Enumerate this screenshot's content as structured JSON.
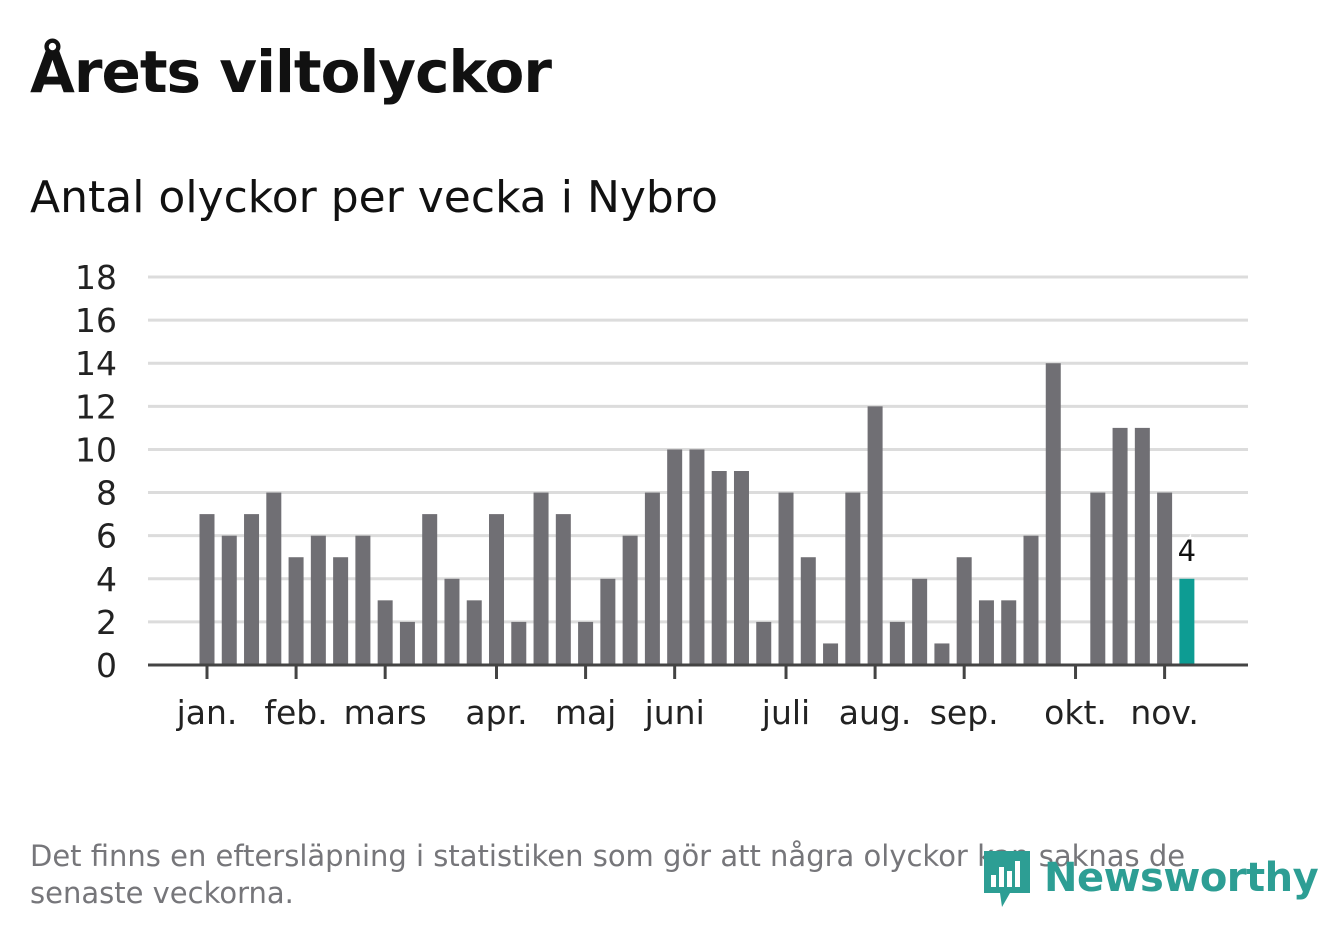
{
  "header": {
    "title": "Årets viltolyckor",
    "subtitle": "Antal olyckor per vecka i Nybro"
  },
  "footer": {
    "note": "Det finns en eftersläpning i statistiken som gör att några olyckor kan saknas de senaste veckorna.",
    "brand": "Newsworthy"
  },
  "colors": {
    "bar": "#706f74",
    "highlight": "#0d9c93",
    "grid": "#dcdcdc",
    "axis": "#444444",
    "text": "#222222",
    "brand": "#2d9e94"
  },
  "chart_data": {
    "type": "bar",
    "title": "Antal olyckor per vecka i Nybro",
    "xlabel": "",
    "ylabel": "",
    "ylim": [
      0,
      18
    ],
    "yticks": [
      0,
      2,
      4,
      6,
      8,
      10,
      12,
      14,
      16,
      18
    ],
    "grid": true,
    "x": [
      1,
      2,
      3,
      4,
      5,
      6,
      7,
      8,
      9,
      10,
      11,
      12,
      13,
      14,
      15,
      16,
      17,
      18,
      19,
      20,
      21,
      22,
      23,
      24,
      25,
      26,
      27,
      28,
      29,
      30,
      31,
      32,
      33,
      34,
      35,
      36,
      37,
      38,
      39,
      40,
      41,
      42,
      43,
      44,
      45
    ],
    "values": [
      7,
      6,
      7,
      8,
      5,
      6,
      5,
      6,
      3,
      2,
      7,
      4,
      3,
      7,
      2,
      8,
      7,
      2,
      4,
      6,
      8,
      10,
      10,
      9,
      9,
      2,
      8,
      5,
      1,
      8,
      12,
      2,
      4,
      1,
      5,
      3,
      3,
      6,
      14,
      0,
      8,
      11,
      11,
      8,
      4
    ],
    "highlight_last": true,
    "last_label": "4",
    "month_ticks": [
      {
        "label": "jan.",
        "week": 1
      },
      {
        "label": "feb.",
        "week": 5
      },
      {
        "label": "mars",
        "week": 9
      },
      {
        "label": "apr.",
        "week": 14
      },
      {
        "label": "maj",
        "week": 18
      },
      {
        "label": "juni",
        "week": 22
      },
      {
        "label": "juli",
        "week": 27
      },
      {
        "label": "aug.",
        "week": 31
      },
      {
        "label": "sep.",
        "week": 35
      },
      {
        "label": "okt.",
        "week": 40
      },
      {
        "label": "nov.",
        "week": 44
      }
    ]
  }
}
